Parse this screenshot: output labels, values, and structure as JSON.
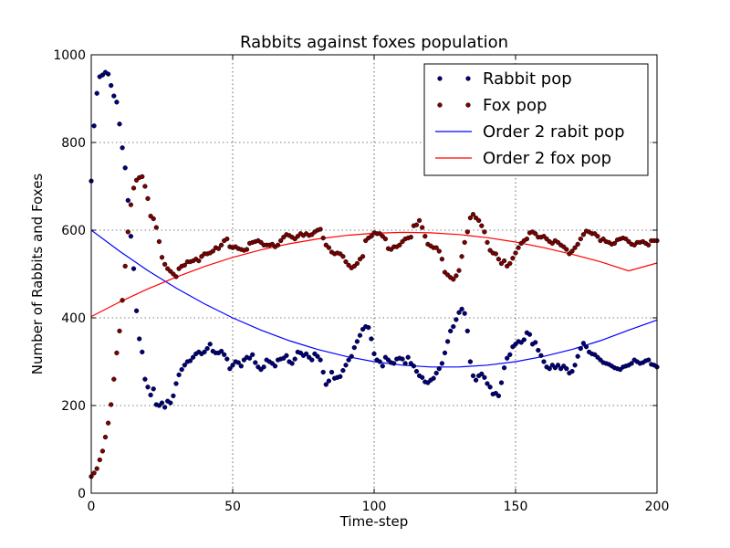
{
  "chart_data": {
    "type": "scatter",
    "title": "Rabbits against foxes population",
    "xlabel": "Time-step",
    "ylabel": "Number of Rabbits and Foxes",
    "xlim": [
      0,
      200
    ],
    "ylim": [
      0,
      1000
    ],
    "xticks": [
      "0",
      "50",
      "100",
      "150",
      "200"
    ],
    "yticks": [
      "0",
      "200",
      "400",
      "600",
      "800",
      "1000"
    ],
    "grid": true,
    "legend_position": "top-right",
    "series": [
      {
        "name": "Rabbit pop",
        "kind": "scatter",
        "color": "#00007f",
        "x": [
          0,
          1,
          2,
          3,
          4,
          5,
          6,
          7,
          8,
          9,
          10,
          11,
          12,
          13,
          14,
          15,
          16,
          17,
          18,
          19,
          20,
          21,
          22,
          23,
          24,
          25,
          26,
          27,
          28,
          29,
          30,
          31,
          32,
          33,
          34,
          35,
          36,
          37,
          38,
          39,
          40,
          41,
          42,
          43,
          44,
          45,
          46,
          47,
          48,
          49,
          50,
          51,
          52,
          53,
          54,
          55,
          56,
          57,
          58,
          59,
          60,
          61,
          62,
          63,
          64,
          65,
          66,
          67,
          68,
          69,
          70,
          71,
          72,
          73,
          74,
          75,
          76,
          77,
          78,
          79,
          80,
          81,
          82,
          83,
          84,
          85,
          86,
          87,
          88,
          89,
          90,
          91,
          92,
          93,
          94,
          95,
          96,
          97,
          98,
          99,
          100,
          101,
          102,
          103,
          104,
          105,
          106,
          107,
          108,
          109,
          110,
          111,
          112,
          113,
          114,
          115,
          116,
          117,
          118,
          119,
          120,
          121,
          122,
          123,
          124,
          125,
          126,
          127,
          128,
          129,
          130,
          131,
          132,
          133,
          134,
          135,
          136,
          137,
          138,
          139,
          140,
          141,
          142,
          143,
          144,
          145,
          146,
          147,
          148,
          149,
          150,
          151,
          152,
          153,
          154,
          155,
          156,
          157,
          158,
          159,
          160,
          161,
          162,
          163,
          164,
          165,
          166,
          167,
          168,
          169,
          170,
          171,
          172,
          173,
          174,
          175,
          176,
          177,
          178,
          179,
          180,
          181,
          182,
          183,
          184,
          185,
          186,
          187,
          188,
          189,
          190,
          191,
          192,
          193,
          194,
          195,
          196,
          197,
          198,
          199,
          200
        ],
        "y": [
          712,
          838,
          912,
          950,
          954,
          960,
          956,
          930,
          906,
          892,
          842,
          788,
          742,
          668,
          586,
          512,
          416,
          352,
          322,
          260,
          242,
          224,
          238,
          202,
          200,
          206,
          196,
          210,
          206,
          222,
          250,
          270,
          282,
          292,
          300,
          302,
          310,
          318,
          322,
          318,
          322,
          330,
          340,
          324,
          320,
          320,
          324,
          316,
          306,
          284,
          292,
          300,
          298,
          290,
          304,
          310,
          308,
          316,
          298,
          288,
          282,
          288,
          304,
          300,
          296,
          290,
          304,
          306,
          308,
          314,
          300,
          296,
          306,
          322,
          320,
          314,
          318,
          310,
          304,
          318,
          312,
          304,
          276,
          248,
          256,
          276,
          262,
          264,
          266,
          280,
          292,
          304,
          312,
          332,
          346,
          360,
          374,
          380,
          378,
          352,
          318,
          304,
          300,
          290,
          310,
          304,
          298,
          296,
          306,
          308,
          306,
          296,
          310,
          296,
          290,
          278,
          268,
          264,
          254,
          252,
          258,
          262,
          274,
          284,
          296,
          320,
          346,
          370,
          380,
          396,
          412,
          420,
          410,
          370,
          300,
          268,
          258,
          268,
          272,
          264,
          250,
          242,
          226,
          228,
          222,
          252,
          286,
          308,
          316,
          334,
          340,
          346,
          344,
          350,
          366,
          362,
          340,
          344,
          326,
          314,
          300,
          288,
          284,
          292,
          286,
          292,
          284,
          290,
          284,
          274,
          278,
          292,
          312,
          330,
          342,
          334,
          322,
          318,
          316,
          310,
          304,
          298,
          296,
          294,
          290,
          286,
          284,
          282,
          288,
          290,
          292,
          296,
          304,
          300,
          296,
          298,
          302,
          304,
          294,
          292,
          288
        ]
      },
      {
        "name": "Fox pop",
        "kind": "scatter",
        "color": "#7f0000",
        "x": [
          0,
          1,
          2,
          3,
          4,
          5,
          6,
          7,
          8,
          9,
          10,
          11,
          12,
          13,
          14,
          15,
          16,
          17,
          18,
          19,
          20,
          21,
          22,
          23,
          24,
          25,
          26,
          27,
          28,
          29,
          30,
          31,
          32,
          33,
          34,
          35,
          36,
          37,
          38,
          39,
          40,
          41,
          42,
          43,
          44,
          45,
          46,
          47,
          48,
          49,
          50,
          51,
          52,
          53,
          54,
          55,
          56,
          57,
          58,
          59,
          60,
          61,
          62,
          63,
          64,
          65,
          66,
          67,
          68,
          69,
          70,
          71,
          72,
          73,
          74,
          75,
          76,
          77,
          78,
          79,
          80,
          81,
          82,
          83,
          84,
          85,
          86,
          87,
          88,
          89,
          90,
          91,
          92,
          93,
          94,
          95,
          96,
          97,
          98,
          99,
          100,
          101,
          102,
          103,
          104,
          105,
          106,
          107,
          108,
          109,
          110,
          111,
          112,
          113,
          114,
          115,
          116,
          117,
          118,
          119,
          120,
          121,
          122,
          123,
          124,
          125,
          126,
          127,
          128,
          129,
          130,
          131,
          132,
          133,
          134,
          135,
          136,
          137,
          138,
          139,
          140,
          141,
          142,
          143,
          144,
          145,
          146,
          147,
          148,
          149,
          150,
          151,
          152,
          153,
          154,
          155,
          156,
          157,
          158,
          159,
          160,
          161,
          162,
          163,
          164,
          165,
          166,
          167,
          168,
          169,
          170,
          171,
          172,
          173,
          174,
          175,
          176,
          177,
          178,
          179,
          180,
          181,
          182,
          183,
          184,
          185,
          186,
          187,
          188,
          189,
          190,
          191,
          192,
          193,
          194,
          195,
          196,
          197,
          198,
          199,
          200
        ],
        "y": [
          38,
          46,
          56,
          76,
          96,
          128,
          160,
          202,
          260,
          320,
          370,
          440,
          518,
          596,
          658,
          696,
          714,
          720,
          722,
          700,
          672,
          632,
          626,
          606,
          574,
          538,
          522,
          512,
          506,
          500,
          494,
          512,
          518,
          520,
          528,
          528,
          530,
          534,
          530,
          540,
          546,
          546,
          548,
          552,
          560,
          558,
          566,
          576,
          580,
          562,
          560,
          562,
          558,
          556,
          554,
          556,
          570,
          572,
          574,
          576,
          572,
          566,
          566,
          566,
          568,
          562,
          566,
          576,
          584,
          590,
          588,
          584,
          580,
          586,
          592,
          588,
          592,
          588,
          590,
          596,
          600,
          602,
          582,
          566,
          560,
          550,
          546,
          548,
          546,
          540,
          528,
          520,
          514,
          518,
          524,
          534,
          540,
          576,
          582,
          586,
          594,
          592,
          592,
          586,
          580,
          558,
          556,
          562,
          562,
          566,
          574,
          580,
          582,
          584,
          610,
          612,
          622,
          606,
          586,
          568,
          564,
          560,
          560,
          552,
          534,
          504,
          498,
          492,
          488,
          496,
          508,
          540,
          572,
          596,
          628,
          636,
          628,
          622,
          610,
          596,
          572,
          554,
          548,
          546,
          534,
          524,
          530,
          518,
          524,
          536,
          548,
          560,
          570,
          576,
          580,
          594,
          596,
          592,
          584,
          584,
          586,
          580,
          574,
          570,
          576,
          572,
          566,
          562,
          556,
          546,
          552,
          560,
          568,
          580,
          590,
          598,
          596,
          592,
          592,
          586,
          576,
          580,
          574,
          572,
          568,
          570,
          578,
          580,
          582,
          580,
          574,
          568,
          566,
          572,
          572,
          574,
          570,
          566,
          576,
          576,
          576
        ]
      },
      {
        "name": "Order 2 rabit pop",
        "kind": "line",
        "color": "#0000ff",
        "x": [
          0,
          10,
          20,
          30,
          40,
          50,
          60,
          70,
          80,
          90,
          100,
          110,
          120,
          130,
          140,
          150,
          160,
          170,
          180,
          190,
          200
        ],
        "y": [
          600,
          552,
          508,
          468,
          432,
          400,
          372,
          348,
          328,
          312,
          300,
          292,
          288,
          288,
          292,
          300,
          312,
          328,
          348,
          372,
          395
        ]
      },
      {
        "name": "Order 2 fox pop",
        "kind": "line",
        "color": "#ff0000",
        "x": [
          0,
          10,
          20,
          30,
          40,
          50,
          60,
          70,
          80,
          90,
          100,
          110,
          120,
          130,
          140,
          150,
          160,
          170,
          180,
          190,
          200
        ],
        "y": [
          403,
          436,
          466,
          493,
          517,
          538,
          555,
          569,
          580,
          588,
          593,
          595,
          594,
          590,
          583,
          573,
          560,
          545,
          528,
          507,
          525
        ]
      }
    ]
  }
}
